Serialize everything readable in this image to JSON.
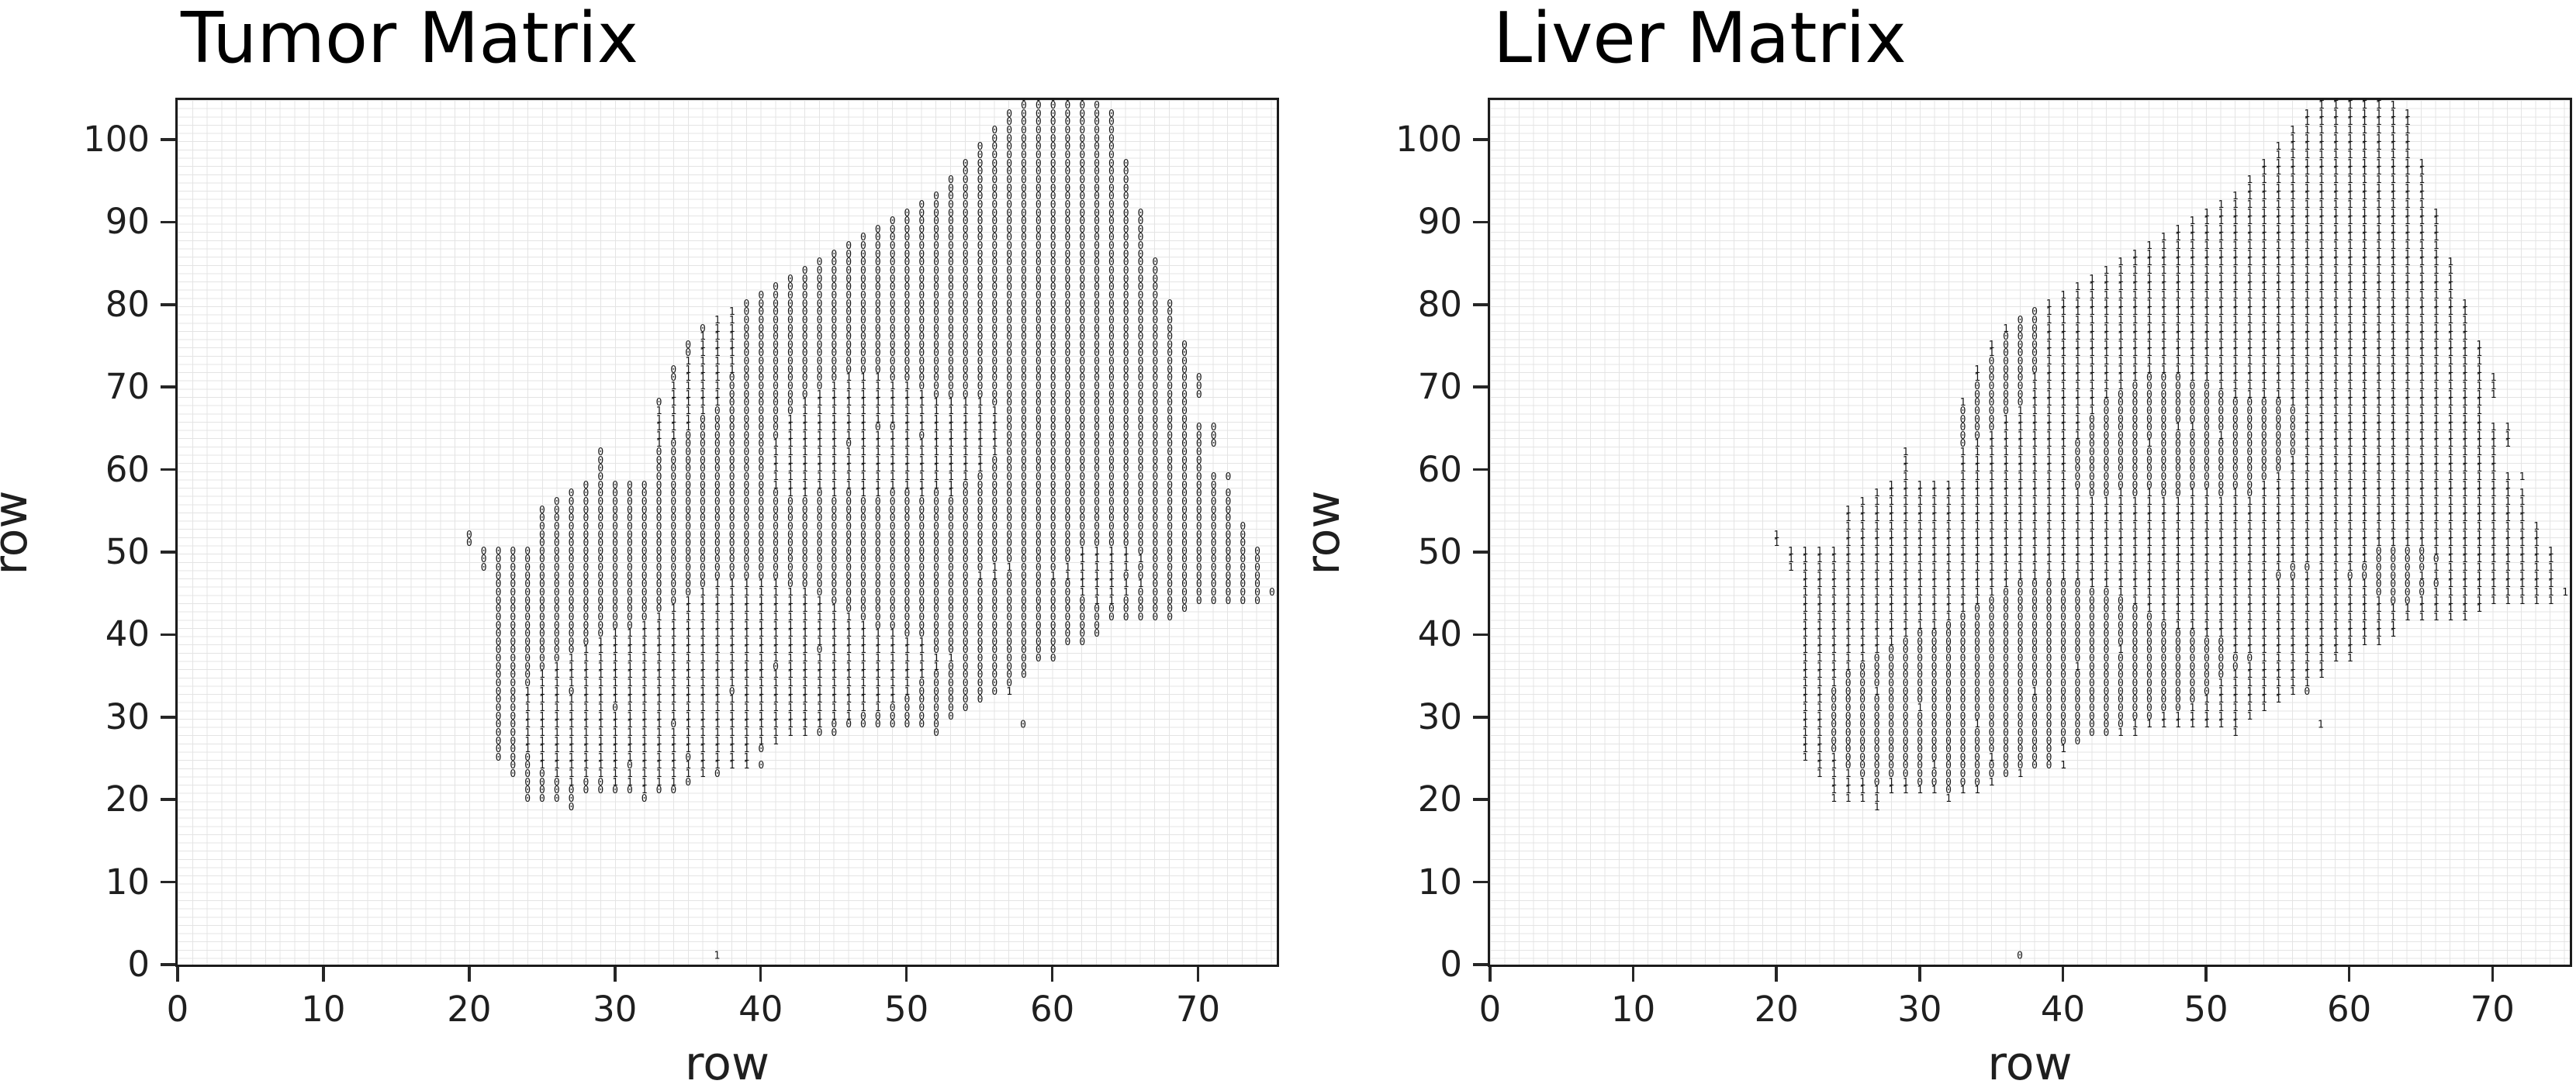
{
  "figure": {
    "background": "#ffffff",
    "text_color": "#1f1f1f",
    "glyph_color": "#161616",
    "grid_color": "#e4e4e4",
    "spine_color": "#1c1c1c"
  },
  "panels": [
    {
      "title": "Tumor Matrix",
      "xlabel": "row",
      "ylabel": "row",
      "values": "identity"
    },
    {
      "title": "Liver Matrix",
      "xlabel": "row",
      "ylabel": "row",
      "values": "complement"
    }
  ],
  "axes": {
    "xticks": [
      0,
      10,
      20,
      30,
      40,
      50,
      60,
      70
    ],
    "yticks": [
      0,
      10,
      20,
      30,
      40,
      50,
      60,
      70,
      80,
      90,
      100
    ],
    "xlim": [
      0,
      75.4
    ],
    "ylim": [
      0,
      104.8
    ],
    "grid": "minor, 1-unit spacing, both axes"
  },
  "chart_data": {
    "type": "scatter",
    "marker_style": "text glyphs '0' and '1' at integer (col,row) positions",
    "note": "rows[] encode the Tumor Matrix panel top-down from y=105 to y=19; first column is x=20; '.'=empty. The Liver Matrix panel is the bitwise complement (0 swapped with 1) of the same grid, per panels[].values.",
    "x_start": 20,
    "y_top": 105,
    "y_bottom": 19,
    "rows": [
      "......................................00000.............",
      "......................................000000............",
      ".....................................00000000...........",
      ".....................................00000000...........",
      "....................................000000000...........",
      "....................................000000000...........",
      "...................................0000000000...........",
      "...................................0000000000...........",
      "..................................000000000000..........",
      "..................................000000000000..........",
      ".................................0000000000000..........",
      ".................................0000000000000..........",
      "................................00000000000000..........",
      "...............................000000000000000..........",
      "..............................00000000000000000.........",
      ".............................000000000000000000.........",
      "............................0000000000000000000.........",
      "...........................00000000000000000000.........",
      "..........................000000000000000000000.........",
      ".........................0000000000000000000000.........",
      "........................000000000000000000000000........",
      ".......................0000000000000000000000000........",
      "......................00000000000000000000000000........",
      ".....................000000000000000000000000000........",
      "....................0000000000000000000000000000........",
      "...................000000000000000000000000000000.......",
      "..................1000000000000000000000000000000.......",
      ".................11000000000000000000000000000000.......",
      "................011000000000000000000000000000000.......",
      "................111000000000000000000000000000000.......",
      "...............01110000000000000000000000000000000......",
      "...............01110000000000000000000000000000000......",
      "...............11110000000000000000000000000000000......",
      "..............011110000000000000000000000000000000......",
      "..............0111000000001110000000000000000000000.....",
      "..............1111000000011111100000000000000000000.....",
      "..............1111000000111111110000000000000000000.....",
      ".............0111100000111111111111100000000000000......",
      ".............1111000000111111111111110000000000000......",
      ".............1110000001111111111111110000000000000......",
      ".............111000000111111001111111000000000000000....",
      ".............110000000111111111011111000000000000000....",
      ".............100000001111101111111111000000000000000....",
      ".........0...00000000111111111111111100000000000000.....",
      ".........0...00000000111111111111111000000000000000.....",
      ".........0...00000000111111111111111000000000000000.....",
      ".........0...0000000011111111111111000000000000000000...",
      "........00000000000001111111111111000000000000000000....",
      ".......0000000000000001101011001010000000000000000000...",
      "......00000000000000000000000000000000000000000000000...",
      ".....000000000000000000000000000000000000000000000000...",
      ".....000000000000000000000000000000000000000000000000...",
      ".....0000000000000000000000000000000000000000000000000..",
      "0....0000000000000000000000000000000000000000000000000..",
      "0....0000000000000000000000000000000000000000000000000..",
      ".000000000000000000000000000000000000000001111000000000..",
      ".000000000000000000000000000000000000000001111100000000.",
      ".000000000000000000000000000000000001100011111000000000.",
      "..00000000000000000000000000000000011000111110000000000",
      "..00000000000000011111000000000000000000001111100000000",
      "..0000000000000011111111000000000000000000111100000000000",
      "..00000000000001111111111000000000000000000110000000000.",
      "..000000000000111111111111000000000000000000000000......",
      "..00000000000111111111111110000000000000000000000.......",
      "..000000000011111111111111110000000000000000...........",
      "..000000001111111111111111111100000000000000............",
      "..00000001111111111111111111111100000000000..............",
      "..000000111111111111111101111111000000000...............",
      "..000001111111111111111111111111110000000................",
      "..0000111111111111111011111111111000000Q................",
      "..0001111111111111111111111111110000000..................",
      "..000111111111111111111111111110000000..................",
      "..001110111111111101111111111110000001...................",
      "..0011111111111111111111111111000000....................",
      "..001111110111111111111111111000000.....................",
      "..00111111111111111111111110000000......................",
      "..0011111111110111111111100000000.......................",
      "..001111111111111111111100......0.......................",
      "..00111111111111111111O.................................",
      "..0011111111111111110...................................",
      "..000111111111101111O...................................",
      "...001111110111111110...................................",
      "...000111111111110O.....................................",
      "....000100111110O.......................................",
      "....00000000100.........................................",
      "....0000....0...........................................",
      ".......0................................................"
    ],
    "extra_points": [
      {
        "x": 37,
        "y": 1,
        "v": "1"
      },
      {
        "x": 58,
        "y": 29,
        "v": "0"
      }
    ]
  }
}
